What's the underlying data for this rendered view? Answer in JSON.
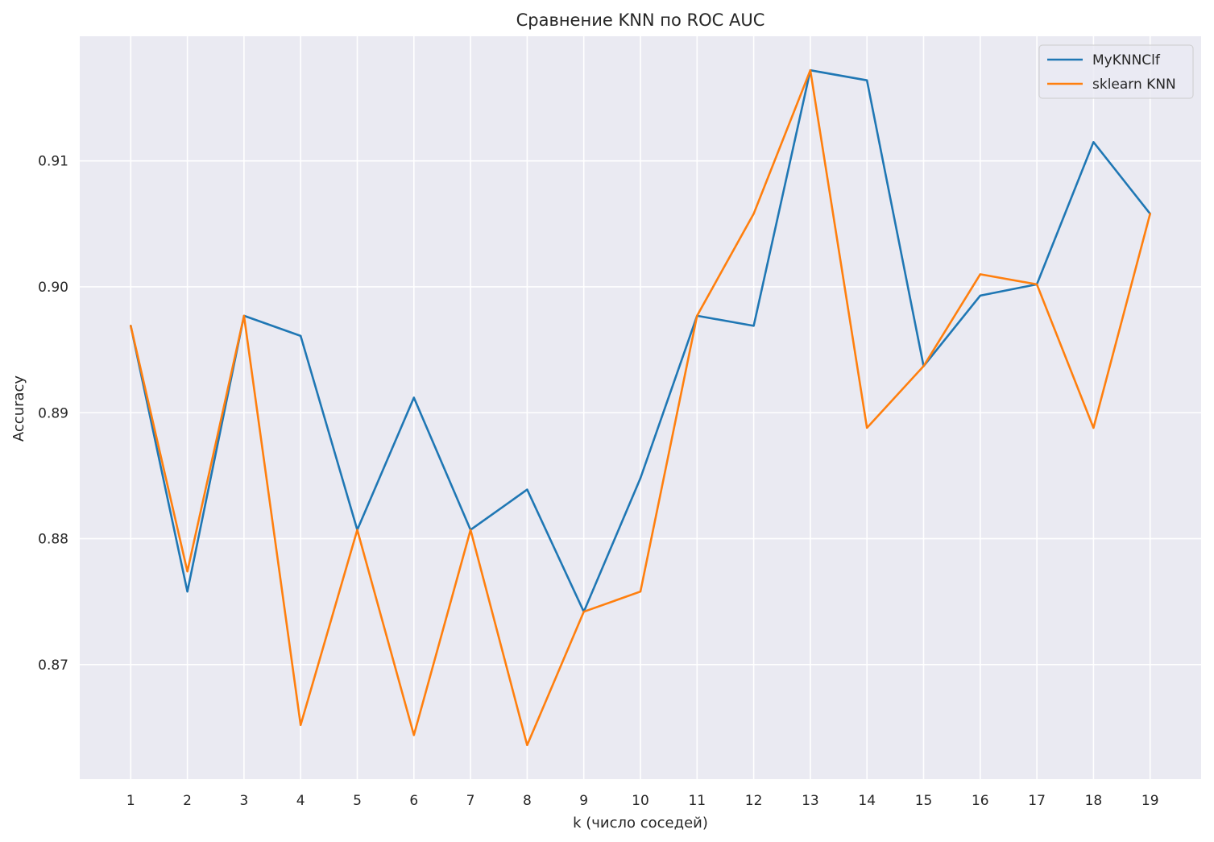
{
  "chart_data": {
    "type": "line",
    "title": "Сравнение KNN по ROC AUC",
    "xlabel": "k (число соседей)",
    "ylabel": "Accuracy",
    "x": [
      1,
      2,
      3,
      4,
      5,
      6,
      7,
      8,
      9,
      10,
      11,
      12,
      13,
      14,
      15,
      16,
      17,
      18,
      19
    ],
    "xlim": [
      0.1,
      19.9
    ],
    "ylim": [
      0.8609,
      0.9199
    ],
    "yticks": [
      0.87,
      0.88,
      0.89,
      0.9,
      0.91
    ],
    "ytick_labels": [
      "0.87",
      "0.88",
      "0.89",
      "0.90",
      "0.91"
    ],
    "grid": true,
    "legend_position": "top-right",
    "series": [
      {
        "name": "MyKNNClf",
        "color": "#1f77b4",
        "values": [
          0.8969,
          0.8758,
          0.8977,
          0.8961,
          0.8807,
          0.8912,
          0.8807,
          0.8839,
          0.8742,
          0.8848,
          0.8977,
          0.8969,
          0.9172,
          0.9164,
          0.8937,
          0.8993,
          0.9002,
          0.9115,
          0.9058
        ]
      },
      {
        "name": "sklearn KNN",
        "color": "#ff7f0e",
        "values": [
          0.8969,
          0.8774,
          0.8977,
          0.8652,
          0.8807,
          0.8644,
          0.8807,
          0.8636,
          0.8742,
          0.8758,
          0.8977,
          0.9058,
          0.9172,
          0.8888,
          0.8937,
          0.901,
          0.9002,
          0.8888,
          0.9058
        ]
      }
    ]
  },
  "style": {
    "plot_background": "#eaeaf2",
    "grid_color": "#ffffff",
    "text_color": "#262626"
  }
}
